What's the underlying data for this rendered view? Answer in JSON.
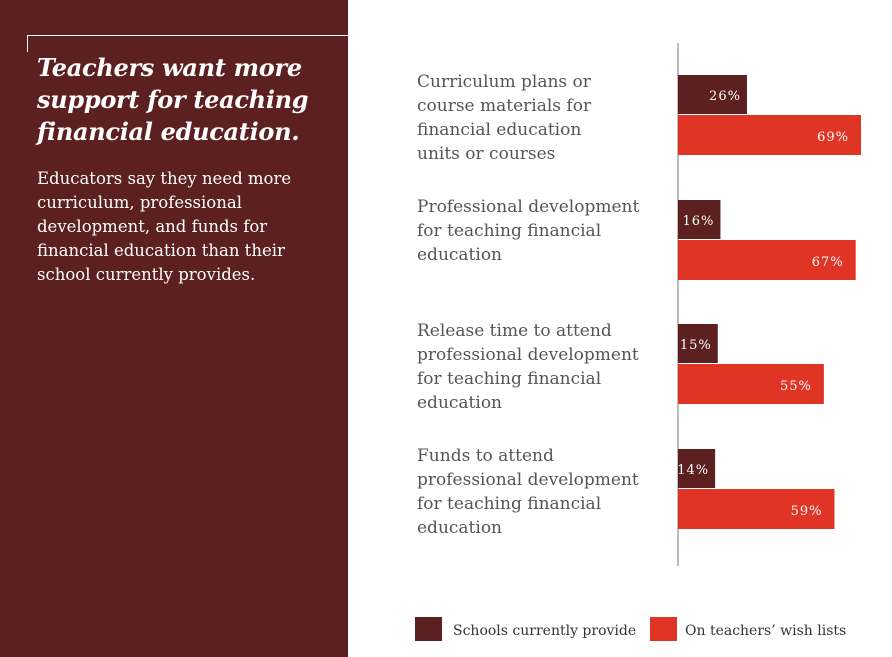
{
  "panel": {
    "headline": "Teachers want more support for teaching financial education.",
    "subtext": "Educators say they need more curriculum, professional development, and funds for financial education than their school currently provides."
  },
  "colors": {
    "panel_bg": "#5c2020",
    "schools": "#5c2020",
    "wishlist": "#e03424",
    "label_text": "#555555"
  },
  "chart_data": {
    "type": "bar",
    "orientation": "horizontal",
    "categories": [
      [
        "Curriculum plans or",
        "course materials for",
        "financial education",
        "units or courses"
      ],
      [
        "Professional development",
        "for teaching financial",
        "education"
      ],
      [
        "Release time to attend",
        "professional development",
        "for teaching financial",
        "education"
      ],
      [
        "Funds to attend",
        "professional development",
        "for teaching financial",
        "education"
      ]
    ],
    "series": [
      {
        "name": "Schools currently provide",
        "values": [
          26,
          16,
          15,
          14
        ],
        "labels": [
          "26%",
          "16%",
          "15%",
          "14%"
        ]
      },
      {
        "name": "On teachers’ wish lists",
        "values": [
          69,
          67,
          55,
          59
        ],
        "labels": [
          "69%",
          "67%",
          "55%",
          "59%"
        ]
      }
    ],
    "xlim": [
      0,
      100
    ],
    "grid": false,
    "legend_position": "bottom"
  }
}
